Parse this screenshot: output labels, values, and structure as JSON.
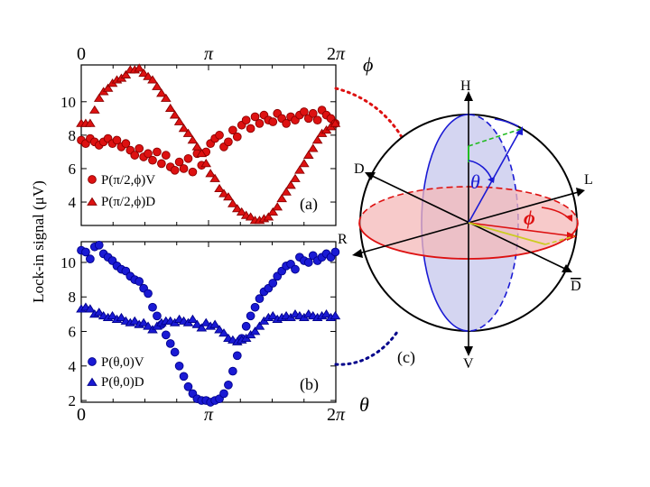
{
  "figure": {
    "ylabel": "Lock-in signal (μV)",
    "panel_c_label": "(c)"
  },
  "colors": {
    "red": "#dd1111",
    "dark_red": "#8b0000",
    "blue": "#1a1ad4",
    "dark_blue": "#00008b",
    "sphere_fill": "#c8c8ee",
    "equator_fill": "#f4b8b8",
    "green": "#22bb22",
    "yellow": "#cccc22"
  },
  "chart_data": [
    {
      "type": "scatter",
      "panel": "(a)",
      "top_axis_label": "ϕ",
      "top_ticks": [
        "0",
        "π",
        "2π"
      ],
      "top_tick_values": [
        0,
        3.14159,
        6.28318
      ],
      "y_ticks": [
        "4",
        "6",
        "8",
        "10"
      ],
      "y_tick_values": [
        4,
        6,
        8,
        10
      ],
      "xlim": [
        0,
        6.28318
      ],
      "ylim": [
        2.6,
        12.2
      ],
      "series": [
        {
          "name": "P(π/2,ϕ)V",
          "marker": "circle",
          "x": [
            0.0,
            0.11,
            0.22,
            0.33,
            0.44,
            0.55,
            0.66,
            0.77,
            0.88,
            0.99,
            1.1,
            1.21,
            1.32,
            1.43,
            1.54,
            1.65,
            1.76,
            1.87,
            1.98,
            2.09,
            2.2,
            2.31,
            2.42,
            2.53,
            2.64,
            2.75,
            2.86,
            2.97,
            3.08,
            3.19,
            3.3,
            3.41,
            3.52,
            3.63,
            3.74,
            3.85,
            3.96,
            4.07,
            4.18,
            4.29,
            4.4,
            4.51,
            4.62,
            4.73,
            4.84,
            4.95,
            5.06,
            5.17,
            5.28,
            5.39,
            5.5,
            5.61,
            5.72,
            5.83,
            5.94,
            6.05,
            6.16,
            6.27
          ],
          "y": [
            7.7,
            7.5,
            7.8,
            7.6,
            7.4,
            7.6,
            7.8,
            7.5,
            7.7,
            7.3,
            7.5,
            7.1,
            6.8,
            7.2,
            6.7,
            6.9,
            6.5,
            7.0,
            6.3,
            6.8,
            6.1,
            5.9,
            6.4,
            6.0,
            6.6,
            5.8,
            6.9,
            6.2,
            7.0,
            7.5,
            7.8,
            8.0,
            7.3,
            7.6,
            8.3,
            7.9,
            8.6,
            8.9,
            8.4,
            9.1,
            8.7,
            9.2,
            8.9,
            8.8,
            9.3,
            9.0,
            8.7,
            9.1,
            8.9,
            9.2,
            9.4,
            9.0,
            9.3,
            8.9,
            9.5,
            9.2,
            9.0,
            8.7
          ]
        },
        {
          "name": "P(π/2,ϕ)D",
          "marker": "triangle",
          "x": [
            0.0,
            0.11,
            0.22,
            0.33,
            0.44,
            0.55,
            0.66,
            0.77,
            0.88,
            0.99,
            1.1,
            1.21,
            1.32,
            1.43,
            1.54,
            1.65,
            1.76,
            1.87,
            1.98,
            2.09,
            2.2,
            2.31,
            2.42,
            2.53,
            2.64,
            2.75,
            2.86,
            2.97,
            3.08,
            3.19,
            3.3,
            3.41,
            3.52,
            3.63,
            3.74,
            3.85,
            3.96,
            4.07,
            4.18,
            4.29,
            4.4,
            4.51,
            4.62,
            4.73,
            4.84,
            4.95,
            5.06,
            5.17,
            5.28,
            5.39,
            5.5,
            5.61,
            5.72,
            5.83,
            5.94,
            6.05,
            6.16,
            6.27
          ],
          "y": [
            8.7,
            8.7,
            8.7,
            9.5,
            10.2,
            10.6,
            10.8,
            11.1,
            11.3,
            11.4,
            11.6,
            11.9,
            11.9,
            12.0,
            11.7,
            11.5,
            11.3,
            10.9,
            10.5,
            10.2,
            9.6,
            9.2,
            8.8,
            8.4,
            8.1,
            7.7,
            7.3,
            6.9,
            6.3,
            5.7,
            5.4,
            4.8,
            4.5,
            4.3,
            3.9,
            3.6,
            3.4,
            3.2,
            3.1,
            2.9,
            2.9,
            3.0,
            3.1,
            3.4,
            3.7,
            4.2,
            4.6,
            5.0,
            5.4,
            5.9,
            6.3,
            6.8,
            7.2,
            7.7,
            8.1,
            8.3,
            8.5,
            8.7
          ]
        }
      ]
    },
    {
      "type": "scatter",
      "panel": "(b)",
      "bottom_axis_label": "θ",
      "bottom_ticks": [
        "0",
        "π",
        "2π"
      ],
      "bottom_tick_values": [
        0,
        3.14159,
        6.28318
      ],
      "y_ticks": [
        "2",
        "4",
        "6",
        "8",
        "10"
      ],
      "y_tick_values": [
        2,
        4,
        6,
        8,
        10
      ],
      "xlim": [
        0,
        6.28318
      ],
      "ylim": [
        1.9,
        11.2
      ],
      "series": [
        {
          "name": "P(θ,0)V",
          "marker": "circle",
          "x": [
            0.0,
            0.11,
            0.22,
            0.33,
            0.44,
            0.55,
            0.66,
            0.77,
            0.88,
            0.99,
            1.1,
            1.21,
            1.32,
            1.43,
            1.54,
            1.65,
            1.76,
            1.87,
            1.98,
            2.09,
            2.2,
            2.31,
            2.42,
            2.53,
            2.64,
            2.75,
            2.86,
            2.97,
            3.08,
            3.19,
            3.3,
            3.41,
            3.52,
            3.63,
            3.74,
            3.85,
            3.96,
            4.07,
            4.18,
            4.29,
            4.4,
            4.51,
            4.62,
            4.73,
            4.84,
            4.95,
            5.06,
            5.17,
            5.28,
            5.39,
            5.5,
            5.61,
            5.72,
            5.83,
            5.94,
            6.05,
            6.16,
            6.27
          ],
          "y": [
            10.7,
            10.6,
            10.2,
            10.9,
            11.0,
            10.5,
            10.3,
            10.1,
            9.8,
            9.6,
            9.5,
            9.2,
            9.0,
            8.9,
            8.5,
            8.2,
            7.4,
            6.9,
            6.4,
            5.8,
            5.3,
            4.8,
            4.0,
            3.4,
            2.8,
            2.4,
            2.1,
            2.0,
            2.0,
            1.9,
            2.0,
            2.1,
            2.4,
            2.9,
            3.7,
            4.6,
            5.6,
            6.3,
            6.9,
            7.4,
            7.9,
            8.3,
            8.5,
            8.8,
            9.2,
            9.5,
            9.8,
            9.9,
            9.6,
            10.3,
            10.1,
            10.0,
            10.4,
            10.1,
            10.3,
            10.5,
            10.3,
            10.6
          ]
        },
        {
          "name": "P(θ,0)D",
          "marker": "triangle",
          "x": [
            0.0,
            0.11,
            0.22,
            0.33,
            0.44,
            0.55,
            0.66,
            0.77,
            0.88,
            0.99,
            1.1,
            1.21,
            1.32,
            1.43,
            1.54,
            1.65,
            1.76,
            1.87,
            1.98,
            2.09,
            2.2,
            2.31,
            2.42,
            2.53,
            2.64,
            2.75,
            2.86,
            2.97,
            3.08,
            3.19,
            3.3,
            3.41,
            3.52,
            3.63,
            3.74,
            3.85,
            3.96,
            4.07,
            4.18,
            4.29,
            4.4,
            4.51,
            4.62,
            4.73,
            4.84,
            4.95,
            5.06,
            5.17,
            5.28,
            5.39,
            5.5,
            5.61,
            5.72,
            5.83,
            5.94,
            6.05,
            6.16,
            6.27
          ],
          "y": [
            7.3,
            7.4,
            7.3,
            7.0,
            7.1,
            6.9,
            6.8,
            6.9,
            6.7,
            6.8,
            6.6,
            6.5,
            6.6,
            6.4,
            6.5,
            6.3,
            6.1,
            6.3,
            6.5,
            6.6,
            6.6,
            6.5,
            6.7,
            6.6,
            6.5,
            6.7,
            6.4,
            6.2,
            6.5,
            6.3,
            6.4,
            6.1,
            5.9,
            5.6,
            5.5,
            5.4,
            5.5,
            5.6,
            5.8,
            6.0,
            6.3,
            6.6,
            6.8,
            6.9,
            6.7,
            6.8,
            6.9,
            6.8,
            7.0,
            6.9,
            6.8,
            7.0,
            6.9,
            6.8,
            6.9,
            7.0,
            6.8,
            6.9
          ]
        }
      ]
    }
  ],
  "bloch": {
    "labels": {
      "H": "H",
      "V": "V",
      "D": "D",
      "Dbar": "D",
      "L": "L",
      "R": "R",
      "theta": "θ",
      "phi": "ϕ"
    }
  }
}
